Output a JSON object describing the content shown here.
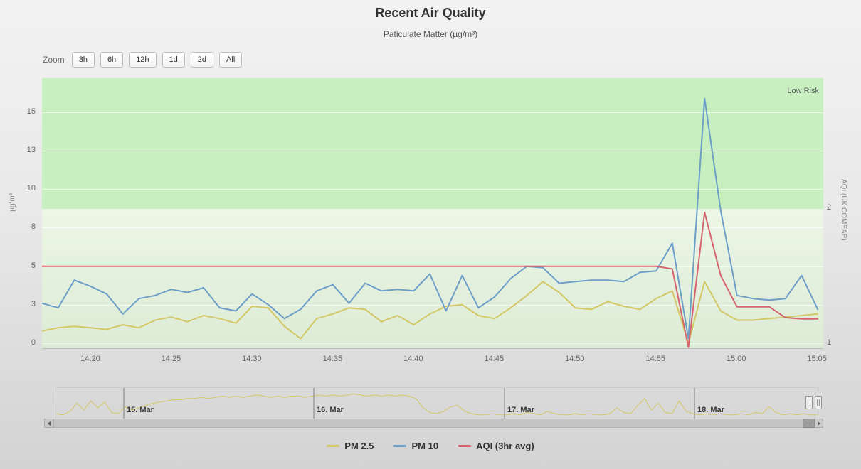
{
  "zoom": {
    "label": "Zoom",
    "buttons": [
      "3h",
      "6h",
      "12h",
      "1d",
      "2d",
      "All"
    ]
  },
  "chart_data": {
    "type": "line",
    "title": "Recent Air Quality",
    "subtitle": "Paticulate Matter (µg/m³)",
    "plot_band_label": "Low Risk",
    "x": [
      "14:17",
      "14:18",
      "14:19",
      "14:20",
      "14:21",
      "14:22",
      "14:23",
      "14:24",
      "14:25",
      "14:26",
      "14:27",
      "14:28",
      "14:29",
      "14:30",
      "14:31",
      "14:32",
      "14:33",
      "14:34",
      "14:35",
      "14:36",
      "14:37",
      "14:38",
      "14:39",
      "14:40",
      "14:41",
      "14:42",
      "14:43",
      "14:44",
      "14:45",
      "14:46",
      "14:47",
      "14:48",
      "14:49",
      "14:50",
      "14:51",
      "14:52",
      "14:53",
      "14:54",
      "14:55",
      "14:56",
      "14:57",
      "14:58",
      "14:59",
      "15:00",
      "15:01",
      "15:02",
      "15:03",
      "15:04",
      "15:05"
    ],
    "series": [
      {
        "name": "PM 2.5",
        "color": "#d3c766",
        "axis": "left",
        "values": [
          0.8,
          1.0,
          1.1,
          1.0,
          0.9,
          1.2,
          1.0,
          1.5,
          1.7,
          1.4,
          1.8,
          1.6,
          1.3,
          2.4,
          2.3,
          1.1,
          0.3,
          1.6,
          1.9,
          2.3,
          2.2,
          1.4,
          1.8,
          1.2,
          1.9,
          2.4,
          2.5,
          1.8,
          1.6,
          2.3,
          3.1,
          4.0,
          3.3,
          2.3,
          2.2,
          2.7,
          2.4,
          2.2,
          2.9,
          3.4,
          0.0,
          4.0,
          2.1,
          1.5,
          1.5,
          1.6,
          1.7,
          1.8,
          1.9
        ]
      },
      {
        "name": "PM 10",
        "color": "#6d9ec7",
        "axis": "left",
        "values": [
          2.6,
          2.3,
          4.1,
          3.7,
          3.2,
          1.9,
          2.9,
          3.1,
          3.5,
          3.3,
          3.6,
          2.3,
          2.1,
          3.2,
          2.5,
          1.6,
          2.2,
          3.4,
          3.8,
          2.6,
          3.9,
          3.4,
          3.5,
          3.4,
          4.5,
          2.1,
          4.4,
          2.3,
          3.0,
          4.2,
          5.0,
          4.9,
          3.9,
          4.0,
          4.1,
          4.1,
          4.0,
          4.6,
          4.7,
          6.5,
          0.3,
          15.9,
          8.6,
          3.1,
          2.9,
          2.8,
          2.9,
          4.4,
          2.2
        ]
      },
      {
        "name": "AQI (3hr avg)",
        "color": "#d5646e",
        "axis": "right",
        "values": [
          1.57,
          1.57,
          1.57,
          1.57,
          1.57,
          1.57,
          1.57,
          1.57,
          1.57,
          1.57,
          1.57,
          1.57,
          1.57,
          1.57,
          1.57,
          1.57,
          1.57,
          1.57,
          1.57,
          1.57,
          1.57,
          1.57,
          1.57,
          1.57,
          1.57,
          1.57,
          1.57,
          1.57,
          1.57,
          1.57,
          1.57,
          1.57,
          1.57,
          1.57,
          1.57,
          1.57,
          1.57,
          1.57,
          1.57,
          1.55,
          0.97,
          1.97,
          1.5,
          1.27,
          1.27,
          1.27,
          1.19,
          1.18,
          1.18
        ]
      }
    ],
    "yaxis_left": {
      "title": "µg/m³",
      "tick_labels": [
        "0",
        "3",
        "5",
        "8",
        "10",
        "13",
        "15"
      ],
      "tick_values": [
        0,
        2.5,
        5,
        7.5,
        10,
        12.5,
        15
      ],
      "range": [
        0,
        17.2
      ]
    },
    "yaxis_right": {
      "title": "AQI (UK COMEAP)",
      "tick_labels": [
        "1",
        "2"
      ],
      "tick_values": [
        1,
        2
      ]
    },
    "xaxis": {
      "tick_labels": [
        "14:20",
        "14:25",
        "14:30",
        "14:35",
        "14:40",
        "14:45",
        "14:50",
        "14:55",
        "15:00",
        "15:05"
      ]
    },
    "navigator": {
      "date_labels": [
        "15. Mar",
        "16. Mar",
        "17. Mar",
        "18. Mar"
      ],
      "max": 22,
      "values": [
        3,
        2,
        5,
        12,
        6,
        14,
        8,
        13,
        4,
        3,
        9,
        6,
        8,
        10,
        12,
        13,
        14,
        15,
        15,
        16,
        16,
        17,
        16,
        17,
        18,
        17,
        18,
        17,
        18,
        19,
        18,
        17,
        18,
        17,
        18,
        18,
        17,
        18,
        19,
        18,
        19,
        18,
        19,
        20,
        19,
        18,
        19,
        18,
        19,
        18,
        19,
        18,
        16,
        8,
        4,
        3,
        5,
        9,
        10,
        5,
        3,
        2,
        2,
        3,
        2,
        2,
        3,
        2,
        4,
        3,
        2,
        5,
        3,
        2,
        2,
        3,
        2,
        3,
        2,
        2,
        3,
        8,
        4,
        3,
        10,
        16,
        6,
        12,
        4,
        3,
        14,
        5,
        3,
        2,
        3,
        2,
        3,
        2,
        2,
        3,
        2,
        4,
        3,
        9,
        4,
        2,
        3,
        2,
        3,
        2,
        2
      ]
    }
  }
}
